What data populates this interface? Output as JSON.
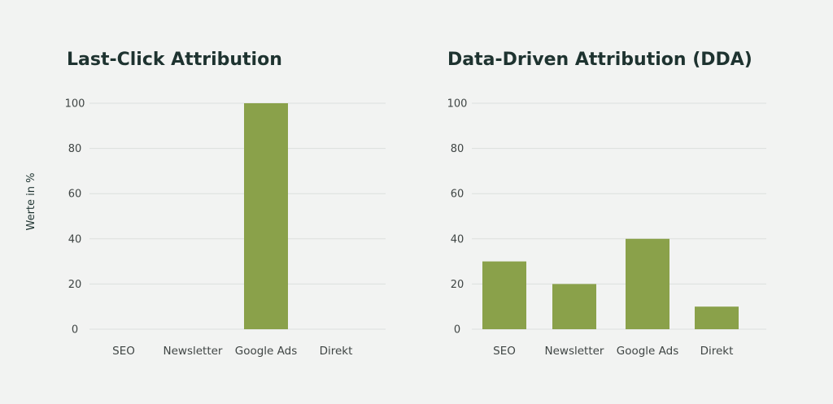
{
  "colors": {
    "background": "#f2f3f2",
    "bar": "#8aa14a",
    "title": "#1e3330",
    "grid": "#dcdfdd"
  },
  "ylabel": "Werte in %",
  "chart_data": [
    {
      "type": "bar",
      "title": "Last-Click Attribution",
      "categories": [
        "SEO",
        "Newsletter",
        "Google Ads",
        "Direkt"
      ],
      "values": [
        0,
        0,
        100,
        0
      ],
      "ylim": [
        0,
        100
      ],
      "yticks": [
        "0",
        "20",
        "40",
        "60",
        "80",
        "100"
      ],
      "grid": true,
      "legend": "none"
    },
    {
      "type": "bar",
      "title": "Data-Driven Attribution (DDA)",
      "categories": [
        "SEO",
        "Newsletter",
        "Google Ads",
        "Direkt"
      ],
      "values": [
        30,
        20,
        40,
        10
      ],
      "ylim": [
        0,
        100
      ],
      "yticks": [
        "0",
        "20",
        "40",
        "60",
        "80",
        "100"
      ],
      "grid": true,
      "legend": "none"
    }
  ]
}
